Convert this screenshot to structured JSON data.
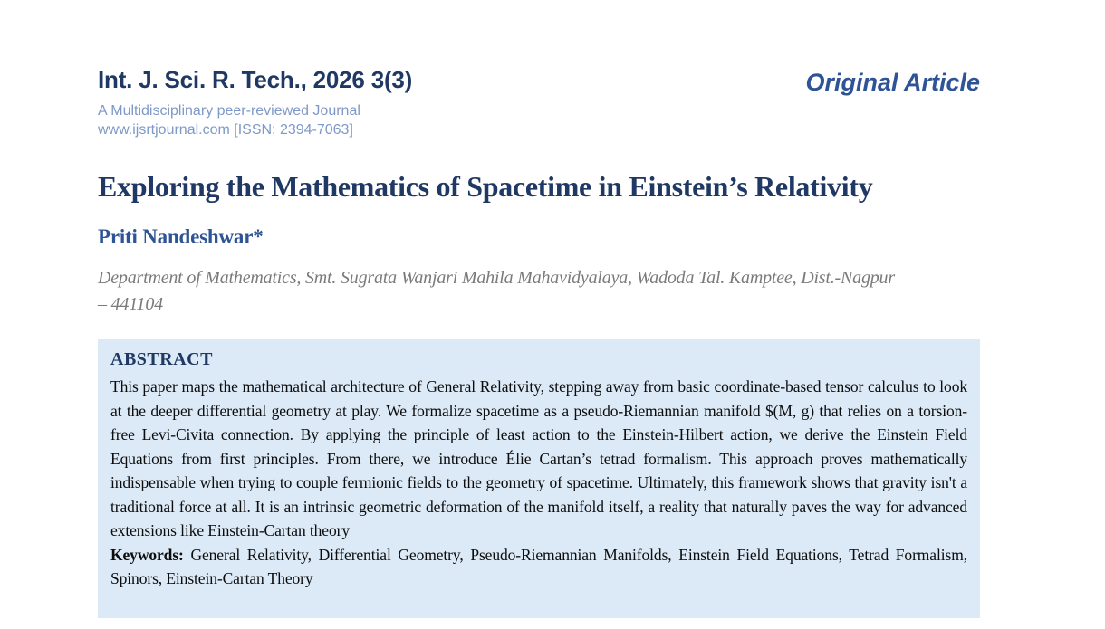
{
  "journal": {
    "name": "Int. J. Sci. R. Tech., 2026 3(3)",
    "tagline": "A Multidisciplinary peer-reviewed Journal",
    "website_issn": "www.ijsrtjournal.com [ISSN: 2394-7063]",
    "article_type": "Original Article"
  },
  "article": {
    "title": "Exploring the Mathematics of Spacetime in Einstein’s Relativity",
    "author": "Priti Nandeshwar*",
    "affiliation": "Department of Mathematics, Smt. Sugrata Wanjari Mahila Mahavidyalaya, Wadoda Tal. Kamptee, Dist.-Nagpur – 441104"
  },
  "abstract": {
    "heading": "ABSTRACT",
    "body": "This paper maps the mathematical architecture of General Relativity, stepping away from basic coordinate-based tensor calculus to look at the deeper differential geometry at play. We formalize spacetime as a pseudo-Riemannian manifold $(M, g) that relies on a torsion-free Levi-Civita connection. By applying the principle of least action to the Einstein-Hilbert action, we derive the Einstein Field Equations from first principles. From there, we introduce Élie Cartan’s tetrad formalism. This approach proves mathematically indispensable when trying to couple fermionic fields to the geometry of spacetime. Ultimately, this framework shows that gravity isn't a traditional force at all. It is an intrinsic geometric deformation of the manifold itself, a reality that naturally paves the way for advanced extensions like Einstein-Cartan theory",
    "keywords_label": "Keywords:",
    "keywords": "General Relativity, Differential Geometry, Pseudo-Riemannian Manifolds, Einstein Field Equations, Tetrad Formalism, Spinors, Einstein-Cartan Theory"
  },
  "colors": {
    "navy": "#1f3864",
    "medium_blue": "#2f5496",
    "light_blue_text": "#7e99c7",
    "abstract_background": "#dce9f6",
    "affiliation_gray": "#7a7a7a"
  }
}
